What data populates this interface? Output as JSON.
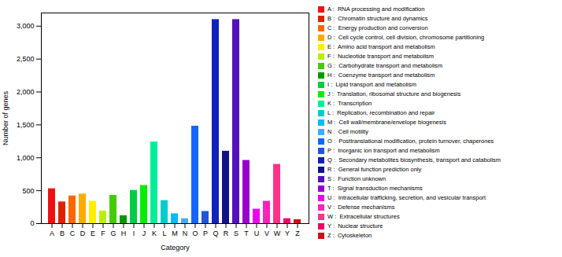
{
  "chart_data": {
    "type": "bar",
    "categories": [
      "A",
      "B",
      "C",
      "D",
      "E",
      "F",
      "G",
      "H",
      "I",
      "J",
      "K",
      "L",
      "M",
      "N",
      "O",
      "P",
      "Q",
      "R",
      "S",
      "T",
      "U",
      "V",
      "W",
      "Y",
      "Z"
    ],
    "values": [
      530,
      330,
      420,
      450,
      340,
      190,
      430,
      120,
      505,
      580,
      1240,
      350,
      150,
      75,
      1480,
      185,
      3100,
      1100,
      3100,
      960,
      220,
      340,
      900,
      75,
      60
    ],
    "colors": [
      "#EE1111",
      "#DD2200",
      "#FF6600",
      "#FFAA00",
      "#FFEE00",
      "#BBEE00",
      "#44CC00",
      "#009900",
      "#00CC44",
      "#00EE00",
      "#00EE99",
      "#00CCCC",
      "#00BBFF",
      "#44AAFF",
      "#1166FF",
      "#2255DD",
      "#1122BB",
      "#111188",
      "#5511BB",
      "#9900CC",
      "#EE00EE",
      "#FF22BB",
      "#FF3388",
      "#EE0066",
      "#CC1111"
    ],
    "legend_labels": [
      "A :  RNA processing and modification",
      "B :  Chromatin structure and dynamics",
      "C :  Energy production and conversion",
      "D :  Cell cycle control, cell division, chromosome partitioning",
      "E :  Amino acid transport and metabolism",
      "F :  Nucleotide transport and metabolism",
      "G :  Carbohydrate transport and metabolism",
      "H :  Coenzyme transport and metabolism",
      "I :  Lipid transport and metabolism",
      "J :  Translation, ribosomal structure and biogenesis",
      "K :  Transcription",
      "L :  Replication, recombination and repair",
      "M :  Cell wall/membrane/envelope biogenesis",
      "N :  Cell motility",
      "O :  Posttranslational modification, protein turnover, chaperones",
      "P :  Inorganic ion transport and metabolism",
      "Q :  Secondary metabolites biosynthesis, transport and catabolism",
      "R :  General function prediction only",
      "S :  Function unknown",
      "T :  Signal transduction mechanisms",
      "U :  Intracellular trafficking, secretion, and vesicular transport",
      "V :  Defense mechanisms",
      "W :  Extracellular structures",
      "Y :  Nuclear structure",
      "Z :  Cytoskeleton"
    ],
    "legend": "right",
    "xlabel": "Category",
    "ylabel": "Number of genes",
    "ylim": [
      0,
      3200
    ],
    "yticks": [
      0,
      500,
      1000,
      1500,
      2000,
      2500,
      3000
    ]
  }
}
